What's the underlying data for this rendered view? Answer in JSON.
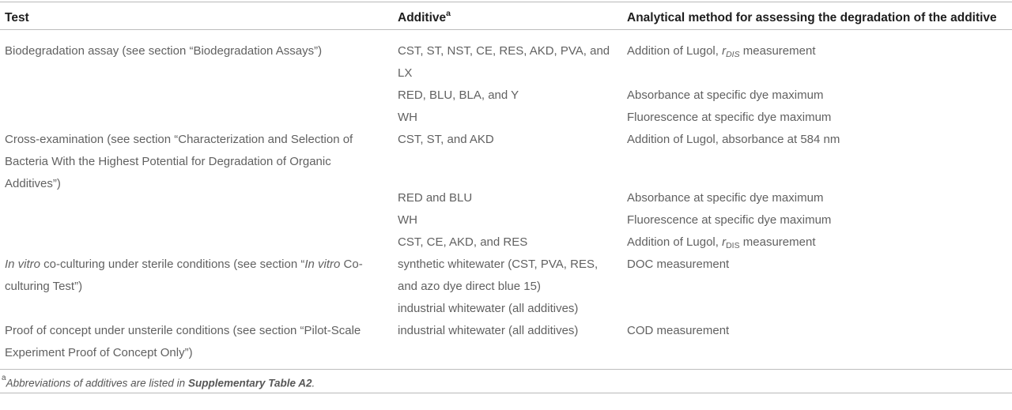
{
  "table": {
    "header": {
      "test": "Test",
      "additive": "Additive",
      "additive_sup": "a",
      "method": "Analytical method for assessing the degradation of the additive"
    },
    "rows": {
      "r1": {
        "test": "Biodegradation assay (see section “Biodegradation Assays”)",
        "additive": "CST, ST, NST, CE, RES, AKD, PVA, and LX",
        "method_pre": "Addition of Lugol, ",
        "method_var": "r",
        "method_sub": "DIS",
        "method_post": " measurement"
      },
      "r2": {
        "additive": "RED, BLU, BLA, and Y",
        "method": "Absorbance at specific dye maximum"
      },
      "r3": {
        "additive": "WH",
        "method": "Fluorescence at specific dye maximum"
      },
      "r4": {
        "test": "Cross-examination (see section “Characterization and Selection of Bacteria With the Highest Potential for Degradation of Organic Additives”)",
        "additive": "CST, ST, and AKD",
        "method": "Addition of Lugol, absorbance at 584 nm"
      },
      "r5": {
        "additive": "RED and BLU",
        "method": "Absorbance at specific dye maximum"
      },
      "r6": {
        "additive": "WH",
        "method": "Fluorescence at specific dye maximum"
      },
      "r7": {
        "additive": "CST, CE, AKD, and RES",
        "method_pre": "Addition of Lugol, ",
        "method_var": "r",
        "method_sub": "DIS",
        "method_post": " measurement"
      },
      "r8": {
        "test_italic1": "In vitro",
        "test_mid": " co-culturing under sterile conditions (see section “",
        "test_italic2": "In vitro",
        "test_end": " Co-culturing Test”)",
        "additive": "synthetic whitewater (CST, PVA, RES, and azo dye direct blue 15)",
        "method": "DOC measurement"
      },
      "r9": {
        "additive": "industrial whitewater (all additives)"
      },
      "r10": {
        "test": "Proof of concept under unsterile conditions (see section “Pilot-Scale Experiment Proof of Concept Only”)",
        "additive": "industrial whitewater (all additives)",
        "method": "COD measurement"
      }
    }
  },
  "footnote": {
    "sup": "a",
    "text": "Abbreviations of additives are listed in ",
    "bold": "Supplementary Table A2",
    "end": "."
  },
  "colors": {
    "header_text": "#1e1e1e",
    "body_text": "#616161",
    "rule": "#bdbdbd"
  }
}
